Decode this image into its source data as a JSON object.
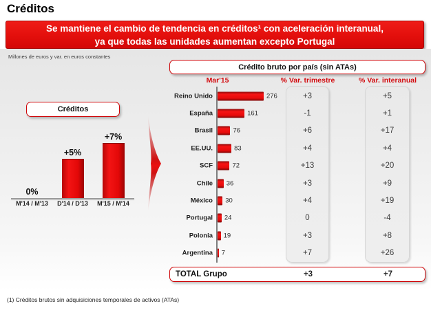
{
  "page_title": "Créditos",
  "banner": {
    "line1": "Se mantiene el cambio de tendencia en créditos¹ con aceleración interanual,",
    "line2": "ya que todas las unidades aumentan excepto Portugal",
    "background_color": "#e30f0c"
  },
  "units_note": "Millones de euros y var. en euros constantes",
  "footnote": "(1) Créditos brutos sin adquisiciones temporales de activos (ATAs)",
  "colors": {
    "brand_red": "#e30f0c",
    "header_text_red": "#d2090d",
    "panel_gray": "#ebebeb",
    "bar_red": "#e60b0b"
  },
  "chart_data": [
    {
      "type": "bar",
      "title": "Créditos",
      "categories": [
        "M'14 / M'13",
        "D'14 / D'13",
        "M'15 / M'14"
      ],
      "values": [
        0,
        5,
        7
      ],
      "value_labels": [
        "0%",
        "+5%",
        "+7%"
      ],
      "unit": "%",
      "ylim": [
        0,
        8
      ],
      "grid": false,
      "legend": false
    },
    {
      "type": "table",
      "title": "Crédito bruto por país (sin ATAs)",
      "columns": [
        "Mar'15",
        "% Var. trimestre",
        "% Var. interanual"
      ],
      "rows": [
        {
          "country": "Reino Unido",
          "value": 276,
          "trimestre": "+3",
          "interanual": "+5"
        },
        {
          "country": "España",
          "value": 161,
          "trimestre": "-1",
          "interanual": "+1"
        },
        {
          "country": "Brasil",
          "value": 76,
          "trimestre": "+6",
          "interanual": "+17"
        },
        {
          "country": "EE.UU.",
          "value": 83,
          "trimestre": "+4",
          "interanual": "+4"
        },
        {
          "country": "SCF",
          "value": 72,
          "trimestre": "+13",
          "interanual": "+20"
        },
        {
          "country": "Chile",
          "value": 36,
          "trimestre": "+3",
          "interanual": "+9"
        },
        {
          "country": "México",
          "value": 30,
          "trimestre": "+4",
          "interanual": "+19"
        },
        {
          "country": "Portugal",
          "value": 24,
          "trimestre": "0",
          "interanual": "-4"
        },
        {
          "country": "Polonia",
          "value": 19,
          "trimestre": "+3",
          "interanual": "+8"
        },
        {
          "country": "Argentina",
          "value": 7,
          "trimestre": "+7",
          "interanual": "+26"
        }
      ],
      "total": {
        "label": "TOTAL Grupo",
        "trimestre": "+3",
        "interanual": "+7"
      }
    }
  ]
}
